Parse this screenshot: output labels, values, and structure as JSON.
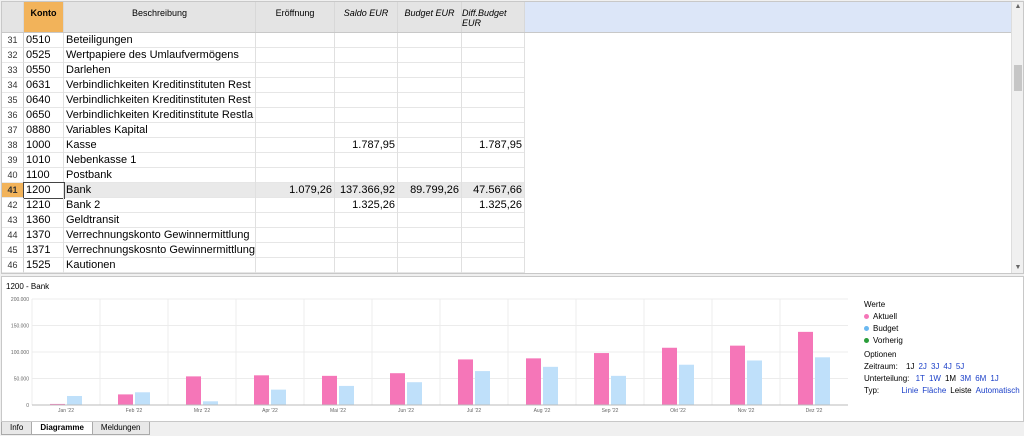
{
  "grid": {
    "headers": {
      "konto": "Konto",
      "beschreibung": "Beschreibung",
      "eroeffnung": "Eröffnung",
      "saldo": "Saldo EUR",
      "budget": "Budget EUR",
      "diff": "Diff.Budget EUR"
    },
    "rows": [
      {
        "n": "31",
        "konto": "0510",
        "besch": "Beteiligungen",
        "erof": "",
        "saldo": "",
        "budget": "",
        "diff": ""
      },
      {
        "n": "32",
        "konto": "0525",
        "besch": "Wertpapiere des Umlaufvermögens",
        "erof": "",
        "saldo": "",
        "budget": "",
        "diff": ""
      },
      {
        "n": "33",
        "konto": "0550",
        "besch": "Darlehen",
        "erof": "",
        "saldo": "",
        "budget": "",
        "diff": ""
      },
      {
        "n": "34",
        "konto": "0631",
        "besch": "Verbindlichkeiten Kreditinstituten Rest",
        "erof": "",
        "saldo": "",
        "budget": "",
        "diff": ""
      },
      {
        "n": "35",
        "konto": "0640",
        "besch": "Verbindlichkeiten Kreditinstituten Rest",
        "erof": "",
        "saldo": "",
        "budget": "",
        "diff": ""
      },
      {
        "n": "36",
        "konto": "0650",
        "besch": "Verbindlichkeiten Kreditinstitute Restla",
        "erof": "",
        "saldo": "",
        "budget": "",
        "diff": ""
      },
      {
        "n": "37",
        "konto": "0880",
        "besch": "Variables Kapital",
        "erof": "",
        "saldo": "",
        "budget": "",
        "diff": ""
      },
      {
        "n": "38",
        "konto": "1000",
        "besch": "Kasse",
        "erof": "",
        "saldo": "1.787,95",
        "budget": "",
        "diff": "1.787,95"
      },
      {
        "n": "39",
        "konto": "1010",
        "besch": "Nebenkasse 1",
        "erof": "",
        "saldo": "",
        "budget": "",
        "diff": ""
      },
      {
        "n": "40",
        "konto": "1100",
        "besch": "Postbank",
        "erof": "",
        "saldo": "",
        "budget": "",
        "diff": ""
      },
      {
        "n": "41",
        "konto": "1200",
        "besch": "Bank",
        "erof": "1.079,26",
        "saldo": "137.366,92",
        "budget": "89.799,26",
        "diff": "47.567,66"
      },
      {
        "n": "42",
        "konto": "1210",
        "besch": "Bank 2",
        "erof": "",
        "saldo": "1.325,26",
        "budget": "",
        "diff": "1.325,26"
      },
      {
        "n": "43",
        "konto": "1360",
        "besch": "Geldtransit",
        "erof": "",
        "saldo": "",
        "budget": "",
        "diff": ""
      },
      {
        "n": "44",
        "konto": "1370",
        "besch": "Verrechnungskonto Gewinnermittlung",
        "erof": "",
        "saldo": "",
        "budget": "",
        "diff": ""
      },
      {
        "n": "45",
        "konto": "1371",
        "besch": "Verrechnungskosnto Gewinnermittlung",
        "erof": "",
        "saldo": "",
        "budget": "",
        "diff": ""
      },
      {
        "n": "46",
        "konto": "1525",
        "besch": "Kautionen",
        "erof": "",
        "saldo": "",
        "budget": "",
        "diff": ""
      }
    ],
    "selected_row": "41"
  },
  "chart_panel": {
    "title": "1200 - Bank",
    "legend_title": "Werte",
    "legend": [
      {
        "label": "Aktuell",
        "color": "#f576b8"
      },
      {
        "label": "Budget",
        "color": "#6bb8f0"
      },
      {
        "label": "Vorherig",
        "color": "#2a9d3a"
      }
    ],
    "options_title": "Optionen",
    "zeitraum_label": "Zeitraum:",
    "zeitraum": [
      "1J",
      "2J",
      "3J",
      "4J",
      "5J"
    ],
    "unterteilung_label": "Unterteilung:",
    "unterteilung": [
      "1T",
      "1W",
      "1M",
      "3M",
      "6M",
      "1J"
    ],
    "typ_label": "Typ:",
    "typ": [
      "Linie",
      "Fläche",
      "Leiste",
      "Automatisch"
    ]
  },
  "chart_data": {
    "type": "bar",
    "categories": [
      "Jan '22",
      "Feb '22",
      "Mrz '22",
      "Apr '22",
      "Mai '22",
      "Jun '22",
      "Jul '22",
      "Aug '22",
      "Sep '22",
      "Okt '22",
      "Nov '22",
      "Dez '22"
    ],
    "series": [
      {
        "name": "Aktuell",
        "values": [
          2000,
          20000,
          54000,
          56000,
          55000,
          60000,
          86000,
          88000,
          98000,
          108000,
          112000,
          138000
        ]
      },
      {
        "name": "Budget",
        "values": [
          17000,
          24000,
          7000,
          29000,
          36000,
          43000,
          64000,
          72000,
          55000,
          76000,
          84000,
          90000
        ]
      }
    ],
    "ylim": [
      0,
      200000
    ],
    "yticks": [
      "0",
      "50.000",
      "100.000",
      "150.000",
      "200.000"
    ],
    "grid": true
  },
  "tabs": [
    "Info",
    "Diagramme",
    "Meldungen"
  ],
  "active_tab": "Diagramme"
}
